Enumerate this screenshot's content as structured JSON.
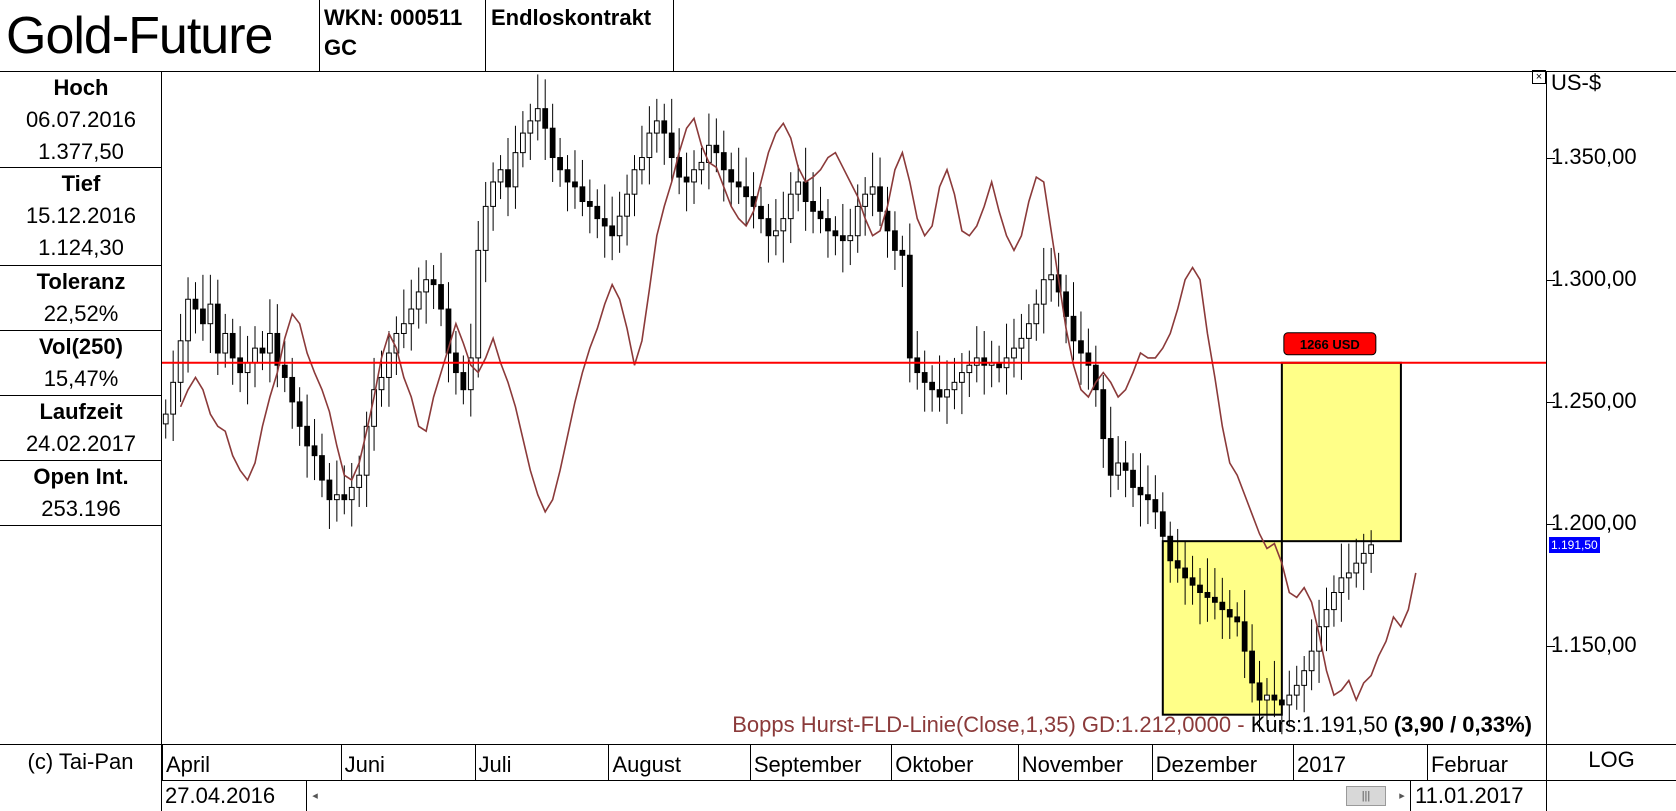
{
  "header": {
    "title": "Gold-Future",
    "wkn": "WKN: 000511",
    "symbol": "GC",
    "contract": "Endloskontrakt"
  },
  "stats": [
    {
      "label": "Hoch",
      "values": [
        "06.07.2016",
        "1.377,50"
      ]
    },
    {
      "label": "Tief",
      "values": [
        "15.12.2016",
        "1.124,30"
      ]
    },
    {
      "label": "Toleranz",
      "values": [
        "22,52%"
      ]
    },
    {
      "label": "Vol(250)",
      "values": [
        "15,47%"
      ]
    },
    {
      "label": "Laufzeit",
      "values": [
        "24.02.2017"
      ]
    },
    {
      "label": "Open Int.",
      "values": [
        "253.196"
      ]
    }
  ],
  "footer": {
    "copyright": "(c) Tai-Pan",
    "scale_mode": "LOG",
    "date_start": "27.04.2016",
    "date_end": "11.01.2017"
  },
  "colors": {
    "candle_up": "#ffffff",
    "candle_down": "#000000",
    "hurst_line": "#8b3a3a",
    "resistance_line": "#ff0000",
    "target_box": "#ffff88",
    "price_badge": "#0000ff"
  },
  "chart_data": {
    "type": "candlestick",
    "y_unit": "US-$",
    "y_ticks": [
      "1.350,00",
      "1.300,00",
      "1.250,00",
      "1.200,00",
      "1.150,00"
    ],
    "y_tick_values": [
      1350,
      1300,
      1250,
      1200,
      1150
    ],
    "ylim": [
      1110,
      1385
    ],
    "x_labels": [
      "April",
      "Juni",
      "Juli",
      "August",
      "September",
      "Oktober",
      "November",
      "Dezember",
      "2017",
      "Februar"
    ],
    "x_label_sessions": [
      0,
      24,
      42,
      60,
      79,
      98,
      115,
      133,
      152,
      170
    ],
    "session_count": 186,
    "last_candle_session": 152,
    "current_price_label": "1.191,50",
    "current_price": 1191.5,
    "resistance": {
      "value": 1266,
      "label": "1266 USD"
    },
    "boxes": [
      {
        "from_session": 134,
        "to_session": 150,
        "low": 1122,
        "high": 1193
      },
      {
        "from_session": 150,
        "to_session": 166,
        "low": 1193,
        "high": 1266
      }
    ],
    "indicator_legend": "Bopps Hurst-FLD-Linie(Close,1,35) GD:1.212,0000 -",
    "kurs_text": "Kurs:1.191,50",
    "change_text": "(3,90 / 0,33%)",
    "closes": [
      1245,
      1258,
      1275,
      1292,
      1288,
      1282,
      1290,
      1270,
      1278,
      1268,
      1262,
      1266,
      1272,
      1270,
      1278,
      1265,
      1260,
      1250,
      1240,
      1232,
      1228,
      1218,
      1210,
      1212,
      1210,
      1215,
      1220,
      1240,
      1255,
      1260,
      1270,
      1278,
      1282,
      1288,
      1295,
      1300,
      1298,
      1288,
      1270,
      1262,
      1255,
      1268,
      1312,
      1330,
      1340,
      1345,
      1338,
      1352,
      1360,
      1365,
      1370,
      1362,
      1350,
      1345,
      1340,
      1338,
      1332,
      1330,
      1325,
      1322,
      1318,
      1326,
      1335,
      1345,
      1350,
      1360,
      1365,
      1360,
      1350,
      1342,
      1340,
      1345,
      1348,
      1355,
      1352,
      1345,
      1340,
      1338,
      1334,
      1330,
      1325,
      1318,
      1320,
      1325,
      1335,
      1340,
      1332,
      1328,
      1325,
      1320,
      1318,
      1316,
      1318,
      1330,
      1335,
      1338,
      1328,
      1320,
      1312,
      1310,
      1268,
      1262,
      1258,
      1255,
      1252,
      1255,
      1258,
      1262,
      1265,
      1268,
      1265,
      1266,
      1264,
      1268,
      1272,
      1276,
      1282,
      1290,
      1300,
      1302,
      1295,
      1285,
      1275,
      1270,
      1265,
      1255,
      1235,
      1220,
      1225,
      1222,
      1215,
      1212,
      1210,
      1205,
      1195,
      1185,
      1182,
      1178,
      1175,
      1172,
      1170,
      1168,
      1165,
      1162,
      1160,
      1148,
      1135,
      1128,
      1130,
      1128,
      1126,
      1130,
      1134,
      1140,
      1148,
      1158,
      1165,
      1172,
      1178,
      1180,
      1184,
      1188,
      1191.5
    ],
    "hurst_fld": [
      1248,
      1255,
      1260,
      1255,
      1245,
      1240,
      1238,
      1228,
      1222,
      1218,
      1225,
      1240,
      1252,
      1262,
      1276,
      1286,
      1282,
      1270,
      1262,
      1255,
      1246,
      1232,
      1220,
      1218,
      1225,
      1238,
      1252,
      1268,
      1278,
      1272,
      1260,
      1252,
      1240,
      1238,
      1252,
      1262,
      1272,
      1282,
      1274,
      1265,
      1262,
      1268,
      1276,
      1266,
      1258,
      1248,
      1235,
      1222,
      1212,
      1205,
      1210,
      1222,
      1236,
      1250,
      1262,
      1272,
      1280,
      1290,
      1298,
      1292,
      1280,
      1265,
      1275,
      1296,
      1318,
      1330,
      1340,
      1352,
      1362,
      1366,
      1355,
      1348,
      1346,
      1338,
      1330,
      1325,
      1322,
      1328,
      1340,
      1352,
      1360,
      1364,
      1358,
      1346,
      1340,
      1342,
      1345,
      1350,
      1352,
      1346,
      1340,
      1334,
      1325,
      1318,
      1320,
      1330,
      1345,
      1352,
      1340,
      1325,
      1318,
      1322,
      1338,
      1345,
      1335,
      1320,
      1318,
      1322,
      1330,
      1340,
      1328,
      1318,
      1312,
      1318,
      1332,
      1342,
      1340,
      1320,
      1300,
      1280,
      1265,
      1255,
      1252,
      1258,
      1262,
      1258,
      1252,
      1255,
      1262,
      1270,
      1268,
      1268,
      1272,
      1278,
      1288,
      1300,
      1305,
      1300,
      1278,
      1260,
      1240,
      1225,
      1220,
      1212,
      1204,
      1196,
      1190,
      1192,
      1184,
      1172,
      1170,
      1174,
      1168,
      1155,
      1140,
      1130,
      1132,
      1136,
      1128,
      1135,
      1138,
      1146,
      1152,
      1162,
      1158,
      1165,
      1180
    ]
  }
}
